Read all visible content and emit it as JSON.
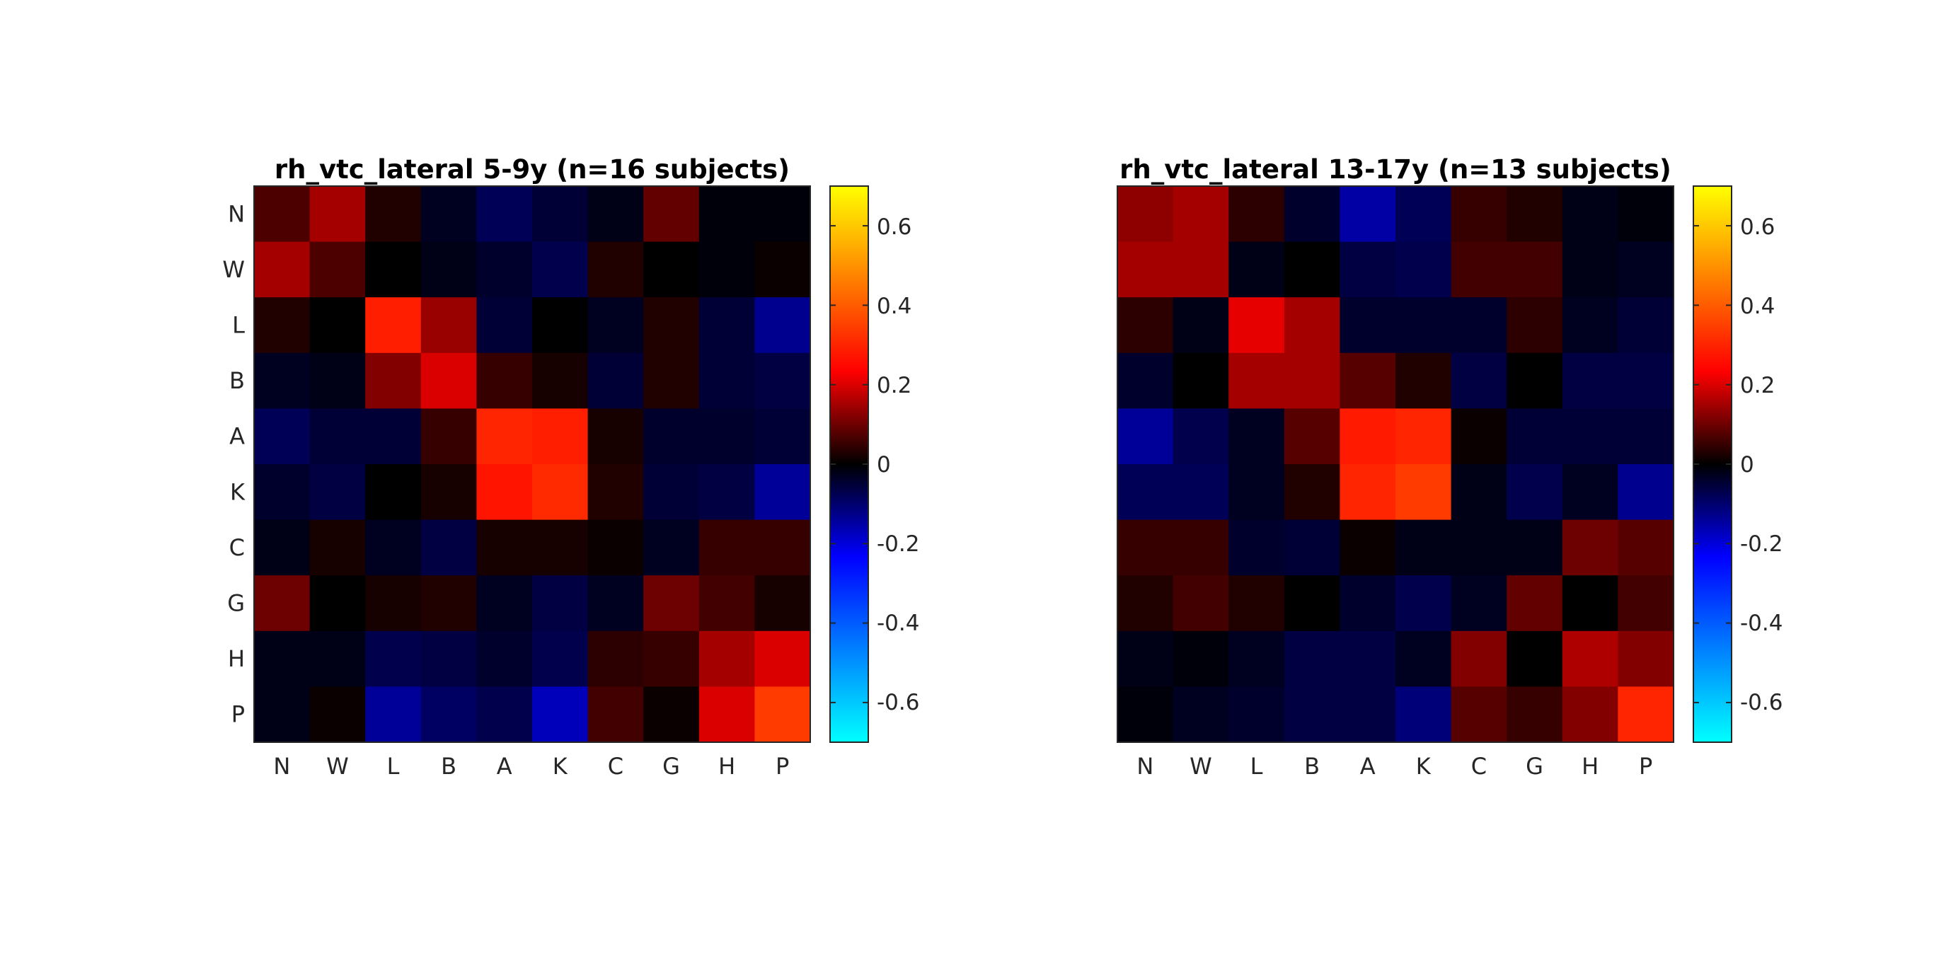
{
  "chart_data": [
    {
      "type": "heatmap",
      "title": "rh_vtc_lateral 5-9y (n=16 subjects)",
      "x_labels": [
        "N",
        "W",
        "L",
        "B",
        "A",
        "K",
        "C",
        "G",
        "H",
        "P"
      ],
      "y_labels": [
        "N",
        "W",
        "L",
        "B",
        "A",
        "K",
        "C",
        "G",
        "H",
        "P"
      ],
      "values": [
        [
          0.07,
          0.15,
          0.03,
          -0.03,
          -0.08,
          -0.05,
          -0.02,
          0.09,
          -0.01,
          -0.01
        ],
        [
          0.15,
          0.07,
          0.0,
          -0.02,
          -0.04,
          -0.07,
          0.03,
          0.0,
          -0.01,
          0.01
        ],
        [
          0.03,
          0.0,
          0.29,
          0.14,
          -0.05,
          0.0,
          -0.03,
          0.03,
          -0.05,
          -0.13
        ],
        [
          -0.03,
          -0.02,
          0.12,
          0.2,
          0.05,
          0.02,
          -0.05,
          0.03,
          -0.05,
          -0.06
        ],
        [
          -0.08,
          -0.05,
          -0.05,
          0.05,
          0.3,
          0.29,
          0.02,
          -0.04,
          -0.04,
          -0.05
        ],
        [
          -0.04,
          -0.06,
          0.0,
          0.02,
          0.27,
          0.31,
          0.03,
          -0.05,
          -0.06,
          -0.14
        ],
        [
          -0.02,
          0.02,
          -0.03,
          -0.06,
          0.02,
          0.02,
          0.01,
          -0.03,
          0.05,
          0.05
        ],
        [
          0.1,
          0.0,
          0.02,
          0.03,
          -0.03,
          -0.06,
          -0.03,
          0.1,
          0.06,
          0.02
        ],
        [
          -0.02,
          -0.02,
          -0.07,
          -0.06,
          -0.04,
          -0.07,
          0.04,
          0.05,
          0.15,
          0.2
        ],
        [
          -0.02,
          0.01,
          -0.14,
          -0.09,
          -0.07,
          -0.17,
          0.06,
          0.01,
          0.2,
          0.34
        ]
      ],
      "colorbar": {
        "range": [
          -0.7,
          0.7
        ],
        "ticks": [
          "0.6",
          "0.4",
          "0.2",
          "0",
          "-0.2",
          "-0.4",
          "-0.6"
        ]
      }
    },
    {
      "type": "heatmap",
      "title": "rh_vtc_lateral 13-17y (n=13 subjects)",
      "x_labels": [
        "N",
        "W",
        "L",
        "B",
        "A",
        "K",
        "C",
        "G",
        "H",
        "P"
      ],
      "y_labels": [
        "N",
        "W",
        "L",
        "B",
        "A",
        "K",
        "C",
        "G",
        "H",
        "P"
      ],
      "values": [
        [
          0.13,
          0.15,
          0.04,
          -0.04,
          -0.15,
          -0.08,
          0.05,
          0.03,
          -0.02,
          -0.01
        ],
        [
          0.15,
          0.15,
          -0.02,
          0.0,
          -0.06,
          -0.07,
          0.06,
          0.06,
          -0.02,
          -0.03
        ],
        [
          0.04,
          -0.02,
          0.21,
          0.15,
          -0.04,
          -0.04,
          -0.04,
          0.04,
          -0.03,
          -0.05
        ],
        [
          -0.04,
          0.0,
          0.15,
          0.15,
          0.08,
          0.03,
          -0.06,
          0.0,
          -0.06,
          -0.06
        ],
        [
          -0.14,
          -0.07,
          -0.03,
          0.08,
          0.28,
          0.3,
          0.01,
          -0.05,
          -0.05,
          -0.05
        ],
        [
          -0.08,
          -0.08,
          -0.03,
          0.03,
          0.3,
          0.34,
          -0.02,
          -0.07,
          -0.03,
          -0.13
        ],
        [
          0.05,
          0.05,
          -0.04,
          -0.05,
          0.01,
          -0.02,
          -0.02,
          -0.02,
          0.1,
          0.08
        ],
        [
          0.03,
          0.06,
          0.03,
          0.0,
          -0.04,
          -0.07,
          -0.03,
          0.09,
          0.0,
          0.06
        ],
        [
          -0.02,
          -0.01,
          -0.03,
          -0.06,
          -0.06,
          -0.03,
          0.12,
          0.0,
          0.16,
          0.12
        ],
        [
          -0.01,
          -0.03,
          -0.04,
          -0.06,
          -0.06,
          -0.11,
          0.08,
          0.05,
          0.12,
          0.3
        ]
      ],
      "colorbar": {
        "range": [
          -0.7,
          0.7
        ],
        "ticks": [
          "0.6",
          "0.4",
          "0.2",
          "0",
          "-0.2",
          "-0.4",
          "-0.6"
        ]
      }
    }
  ]
}
